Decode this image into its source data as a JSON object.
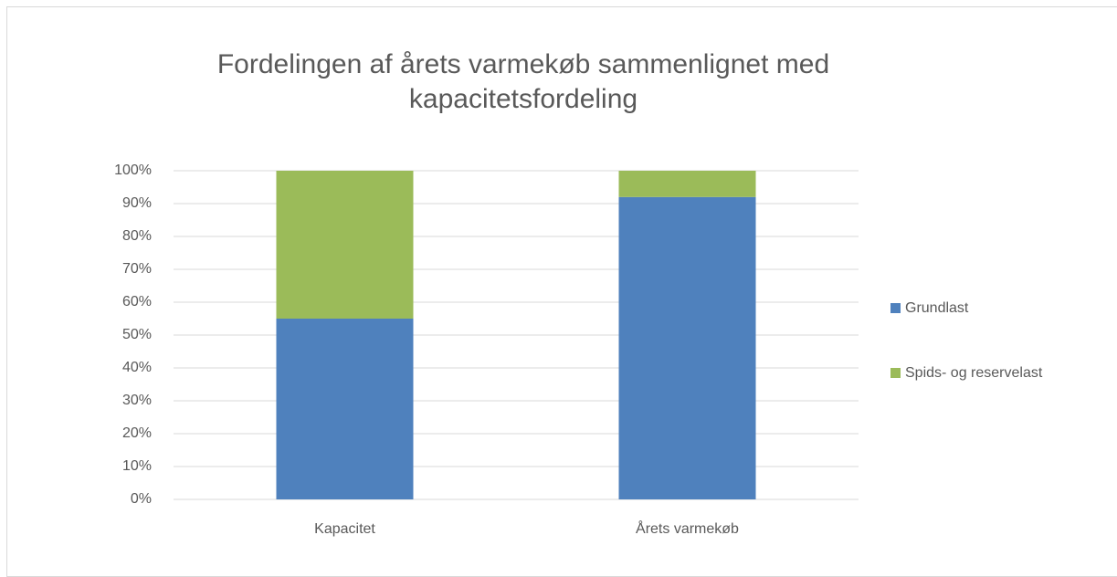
{
  "chart_data": {
    "type": "stacked_bar",
    "title": "Fordelingen af årets varmekøb sammenlignet med kapacitetsfordeling",
    "categories": [
      "Kapacitet",
      "Årets varmekøb"
    ],
    "series": [
      {
        "name": "Grundlast",
        "color": "#4f81bd",
        "values": [
          55,
          92
        ]
      },
      {
        "name": "Spids- og reservelast",
        "color": "#9bbb59",
        "values": [
          45,
          8
        ]
      }
    ],
    "ylim": [
      0,
      100
    ],
    "yticks": [
      {
        "value": 0,
        "label": "0%"
      },
      {
        "value": 10,
        "label": "10%"
      },
      {
        "value": 20,
        "label": "20%"
      },
      {
        "value": 30,
        "label": "30%"
      },
      {
        "value": 40,
        "label": "40%"
      },
      {
        "value": 50,
        "label": "50%"
      },
      {
        "value": 60,
        "label": "60%"
      },
      {
        "value": 70,
        "label": "70%"
      },
      {
        "value": 80,
        "label": "80%"
      },
      {
        "value": 90,
        "label": "90%"
      },
      {
        "value": 100,
        "label": "100%"
      }
    ],
    "grid": true,
    "legend": "right"
  }
}
